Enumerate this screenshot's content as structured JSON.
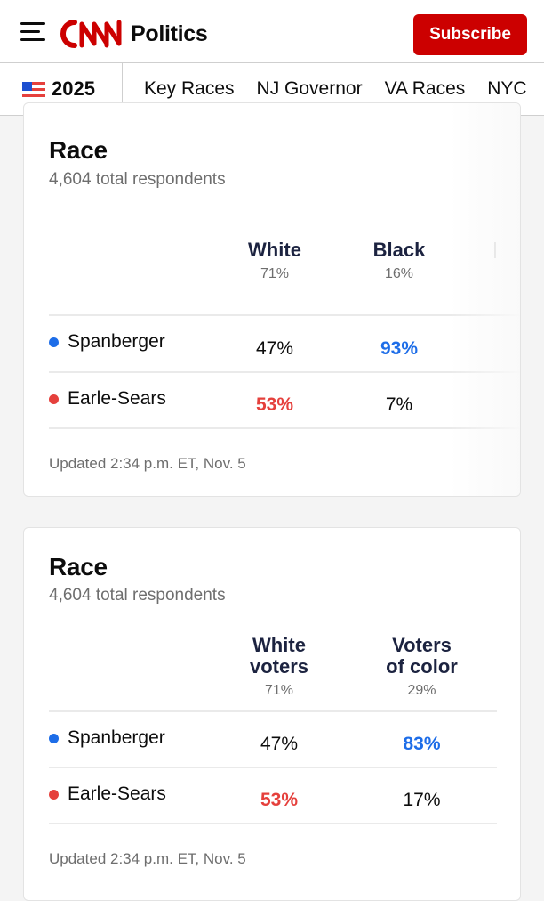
{
  "header": {
    "section": "Politics",
    "subscribe_label": "Subscribe",
    "icons": {
      "menu": "hamburger-menu-icon",
      "logo": "cnn-logo"
    },
    "colors": {
      "brand_red": "#cc0000"
    }
  },
  "nav": {
    "year": "2025",
    "items": [
      "Key Races",
      "NJ Governor",
      "VA Races",
      "NYC"
    ]
  },
  "cards": [
    {
      "title": "Race",
      "respondents": "4,604 total respondents",
      "columns": [
        {
          "label": "White",
          "share": "71%"
        },
        {
          "label": "Black",
          "share": "16%"
        }
      ],
      "rows": [
        {
          "candidate": "Spanberger",
          "dot_color": "#1d6de8",
          "values": [
            "47%",
            "93%"
          ]
        },
        {
          "candidate": "Earle-Sears",
          "dot_color": "#e5403c",
          "values": [
            "53%",
            "7%"
          ]
        }
      ],
      "updated": "Updated 2:34 p.m. ET, Nov. 5"
    },
    {
      "title": "Race",
      "respondents": "4,604 total respondents",
      "columns": [
        {
          "label": "White voters",
          "share": "71%"
        },
        {
          "label": "Voters of color",
          "share": "29%"
        }
      ],
      "rows": [
        {
          "candidate": "Spanberger",
          "dot_color": "#1d6de8",
          "values": [
            "47%",
            "83%"
          ]
        },
        {
          "candidate": "Earle-Sears",
          "dot_color": "#e5403c",
          "values": [
            "53%",
            "17%"
          ]
        }
      ],
      "updated": "Updated 2:34 p.m. ET, Nov. 5"
    }
  ]
}
